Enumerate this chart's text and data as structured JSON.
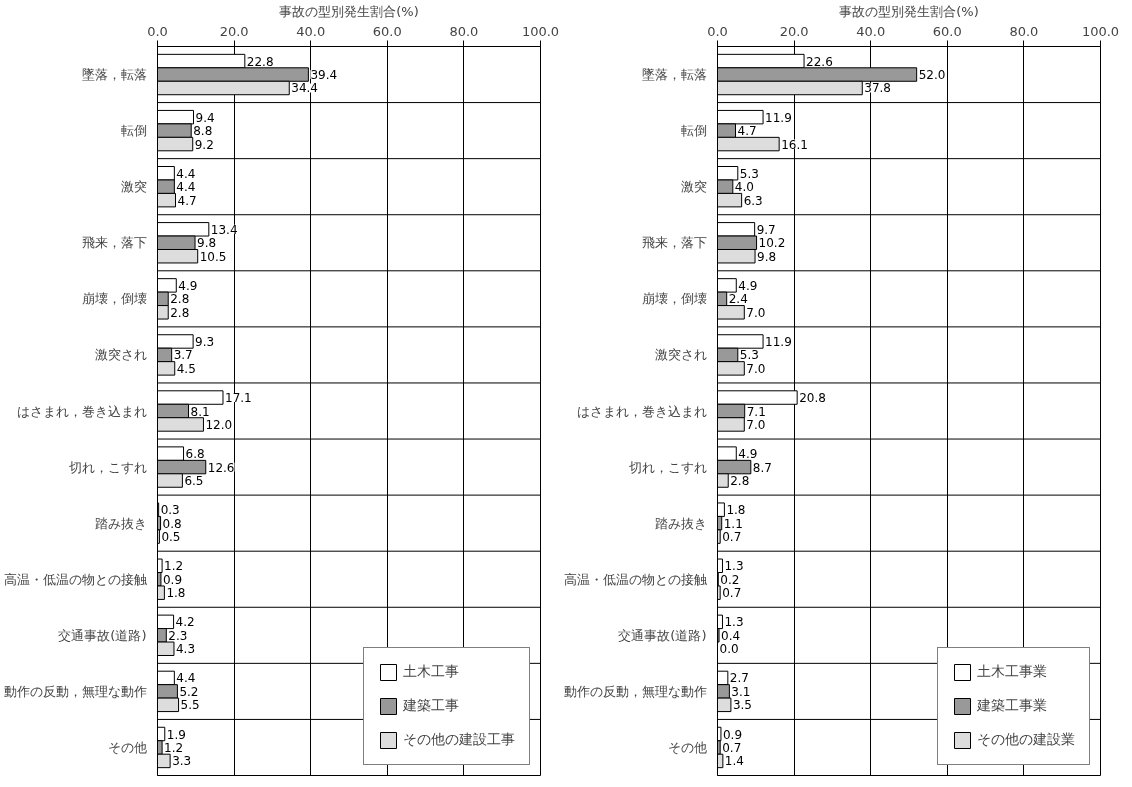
{
  "chart_data": [
    {
      "type": "bar",
      "orientation": "horizontal",
      "xlabel": "事故の型別発生割合(%)",
      "categories": [
        "墜落，転落",
        "転倒",
        "激突",
        "飛来，落下",
        "崩壊，倒壊",
        "激突され",
        "はさまれ，巻き込まれ",
        "切れ，こすれ",
        "踏み抜き",
        "高温・低温の物との接触",
        "交通事故(道路)",
        "動作の反動，無理な動作",
        "その他"
      ],
      "xlim": [
        0,
        100
      ],
      "xticks": [
        {
          "value": 0,
          "label": "0.0"
        },
        {
          "value": 20,
          "label": "20.0"
        },
        {
          "value": 40,
          "label": "40.0"
        },
        {
          "value": 60,
          "label": "60.0"
        },
        {
          "value": 80,
          "label": "80.0"
        },
        {
          "value": 100,
          "label": "100.0"
        }
      ],
      "grid": true,
      "legend": "bottom right",
      "series": [
        {
          "name": "土木工事",
          "color": "#ffffff",
          "values": [
            22.8,
            9.4,
            4.4,
            13.4,
            4.9,
            9.3,
            17.1,
            6.8,
            0.3,
            1.2,
            4.2,
            4.4,
            1.9
          ],
          "value_labels": [
            "22.8",
            "9.4",
            "4.4",
            "13.4",
            "4.9",
            "9.3",
            "17.1",
            "6.8",
            "0.3",
            "1.2",
            "4.2",
            "4.4",
            "1.9"
          ]
        },
        {
          "name": "建築工事",
          "color": "#999999",
          "values": [
            39.4,
            8.8,
            4.4,
            9.8,
            2.8,
            3.7,
            8.1,
            12.6,
            0.8,
            0.9,
            2.3,
            5.2,
            1.2
          ],
          "value_labels": [
            "39.4",
            "8.8",
            "4.4",
            "9.8",
            "2.8",
            "3.7",
            "8.1",
            "12.6",
            "0.8",
            "0.9",
            "2.3",
            "5.2",
            "1.2"
          ]
        },
        {
          "name": "その他の建設工事",
          "color": "#dddddd",
          "values": [
            34.4,
            9.2,
            4.7,
            10.5,
            2.8,
            4.5,
            12.0,
            6.5,
            0.5,
            1.8,
            4.3,
            5.5,
            3.3
          ],
          "value_labels": [
            "34.4",
            "9.2",
            "4.7",
            "10.5",
            "2.8",
            "4.5",
            "12.0",
            "6.5",
            "0.5",
            "1.8",
            "4.3",
            "5.5",
            "3.3"
          ]
        }
      ]
    },
    {
      "type": "bar",
      "orientation": "horizontal",
      "xlabel": "事故の型別発生割合(%)",
      "categories": [
        "墜落，転落",
        "転倒",
        "激突",
        "飛来，落下",
        "崩壊，倒壊",
        "激突され",
        "はさまれ，巻き込まれ",
        "切れ，こすれ",
        "踏み抜き",
        "高温・低温の物との接触",
        "交通事故(道路)",
        "動作の反動，無理な動作",
        "その他"
      ],
      "xlim": [
        0,
        100
      ],
      "xticks": [
        {
          "value": 0,
          "label": "0.0"
        },
        {
          "value": 20,
          "label": "20.0"
        },
        {
          "value": 40,
          "label": "40.0"
        },
        {
          "value": 60,
          "label": "60.0"
        },
        {
          "value": 80,
          "label": "80.0"
        },
        {
          "value": 100,
          "label": "100.0"
        }
      ],
      "grid": true,
      "legend": "bottom right",
      "series": [
        {
          "name": "土木工事業",
          "color": "#ffffff",
          "values": [
            22.6,
            11.9,
            5.3,
            9.7,
            4.9,
            11.9,
            20.8,
            4.9,
            1.8,
            1.3,
            1.3,
            2.7,
            0.9
          ],
          "value_labels": [
            "22.6",
            "11.9",
            "5.3",
            "9.7",
            "4.9",
            "11.9",
            "20.8",
            "4.9",
            "1.8",
            "1.3",
            "1.3",
            "2.7",
            "0.9"
          ]
        },
        {
          "name": "建築工事業",
          "color": "#999999",
          "values": [
            52.0,
            4.7,
            4.0,
            10.2,
            2.4,
            5.3,
            7.1,
            8.7,
            1.1,
            0.2,
            0.4,
            3.1,
            0.7
          ],
          "value_labels": [
            "52.0",
            "4.7",
            "4.0",
            "10.2",
            "2.4",
            "5.3",
            "7.1",
            "8.7",
            "1.1",
            "0.2",
            "0.4",
            "3.1",
            "0.7"
          ]
        },
        {
          "name": "その他の建設業",
          "color": "#dddddd",
          "values": [
            37.8,
            16.1,
            6.3,
            9.8,
            7.0,
            7.0,
            7.0,
            2.8,
            0.7,
            0.7,
            0.0,
            3.5,
            1.4
          ],
          "value_labels": [
            "37.8",
            "16.1",
            "6.3",
            "9.8",
            "7.0",
            "7.0",
            "7.0",
            "2.8",
            "0.7",
            "0.7",
            "0.0",
            "3.5",
            "1.4"
          ]
        }
      ]
    }
  ]
}
